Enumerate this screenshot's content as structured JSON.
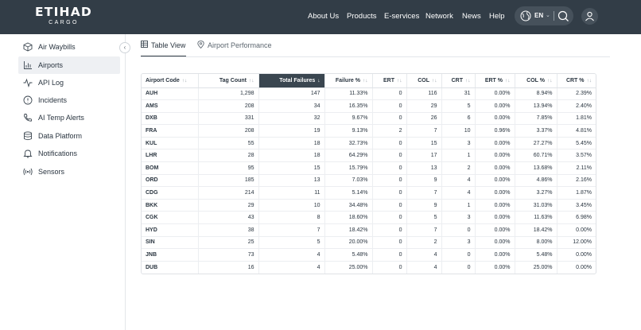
{
  "header": {
    "logo_text": "ETIHAD",
    "logo_subtext": "CARGO",
    "nav": [
      "About Us",
      "Products",
      "E-services",
      "Network",
      "News",
      "Help"
    ],
    "language": "EN",
    "bg_color": "#323d47"
  },
  "sidebar": {
    "items": [
      {
        "label": "Air Waybills",
        "icon": "box-icon",
        "active": false
      },
      {
        "label": "Airports",
        "icon": "bar-chart-icon",
        "active": true
      },
      {
        "label": "API Log",
        "icon": "activity-icon",
        "active": false
      },
      {
        "label": "Incidents",
        "icon": "alert-circle-icon",
        "active": false
      },
      {
        "label": "AI Temp Alerts",
        "icon": "phone-icon",
        "active": false
      },
      {
        "label": "Data Platform",
        "icon": "database-icon",
        "active": false
      },
      {
        "label": "Notifications",
        "icon": "bell-icon",
        "active": false
      },
      {
        "label": "Sensors",
        "icon": "radio-icon",
        "active": false
      }
    ]
  },
  "tabs": [
    {
      "label": "Table View",
      "icon": "table-icon",
      "active": true
    },
    {
      "label": "Airport Performance",
      "icon": "map-pin-icon",
      "active": false
    }
  ],
  "table": {
    "columns": [
      "Airport Code",
      "Tag Count",
      "Total Failures",
      "Failure %",
      "ERT",
      "COL",
      "CRT",
      "ERT %",
      "COL %",
      "CRT %"
    ],
    "sorted_column": "Total Failures",
    "sort_direction": "desc",
    "rows": [
      [
        "AUH",
        "1,298",
        "147",
        "11.33%",
        "0",
        "116",
        "31",
        "0.00%",
        "8.94%",
        "2.39%"
      ],
      [
        "AMS",
        "208",
        "34",
        "16.35%",
        "0",
        "29",
        "5",
        "0.00%",
        "13.94%",
        "2.40%"
      ],
      [
        "DXB",
        "331",
        "32",
        "9.67%",
        "0",
        "26",
        "6",
        "0.00%",
        "7.85%",
        "1.81%"
      ],
      [
        "FRA",
        "208",
        "19",
        "9.13%",
        "2",
        "7",
        "10",
        "0.96%",
        "3.37%",
        "4.81%"
      ],
      [
        "KUL",
        "55",
        "18",
        "32.73%",
        "0",
        "15",
        "3",
        "0.00%",
        "27.27%",
        "5.45%"
      ],
      [
        "LHR",
        "28",
        "18",
        "64.29%",
        "0",
        "17",
        "1",
        "0.00%",
        "60.71%",
        "3.57%"
      ],
      [
        "BOM",
        "95",
        "15",
        "15.79%",
        "0",
        "13",
        "2",
        "0.00%",
        "13.68%",
        "2.11%"
      ],
      [
        "ORD",
        "185",
        "13",
        "7.03%",
        "0",
        "9",
        "4",
        "0.00%",
        "4.86%",
        "2.16%"
      ],
      [
        "CDG",
        "214",
        "11",
        "5.14%",
        "0",
        "7",
        "4",
        "0.00%",
        "3.27%",
        "1.87%"
      ],
      [
        "BKK",
        "29",
        "10",
        "34.48%",
        "0",
        "9",
        "1",
        "0.00%",
        "31.03%",
        "3.45%"
      ],
      [
        "CGK",
        "43",
        "8",
        "18.60%",
        "0",
        "5",
        "3",
        "0.00%",
        "11.63%",
        "6.98%"
      ],
      [
        "HYD",
        "38",
        "7",
        "18.42%",
        "0",
        "7",
        "0",
        "0.00%",
        "18.42%",
        "0.00%"
      ],
      [
        "SIN",
        "25",
        "5",
        "20.00%",
        "0",
        "2",
        "3",
        "0.00%",
        "8.00%",
        "12.00%"
      ],
      [
        "JNB",
        "73",
        "4",
        "5.48%",
        "0",
        "4",
        "0",
        "0.00%",
        "5.48%",
        "0.00%"
      ],
      [
        "DUB",
        "16",
        "4",
        "25.00%",
        "0",
        "4",
        "0",
        "0.00%",
        "25.00%",
        "0.00%"
      ]
    ]
  }
}
